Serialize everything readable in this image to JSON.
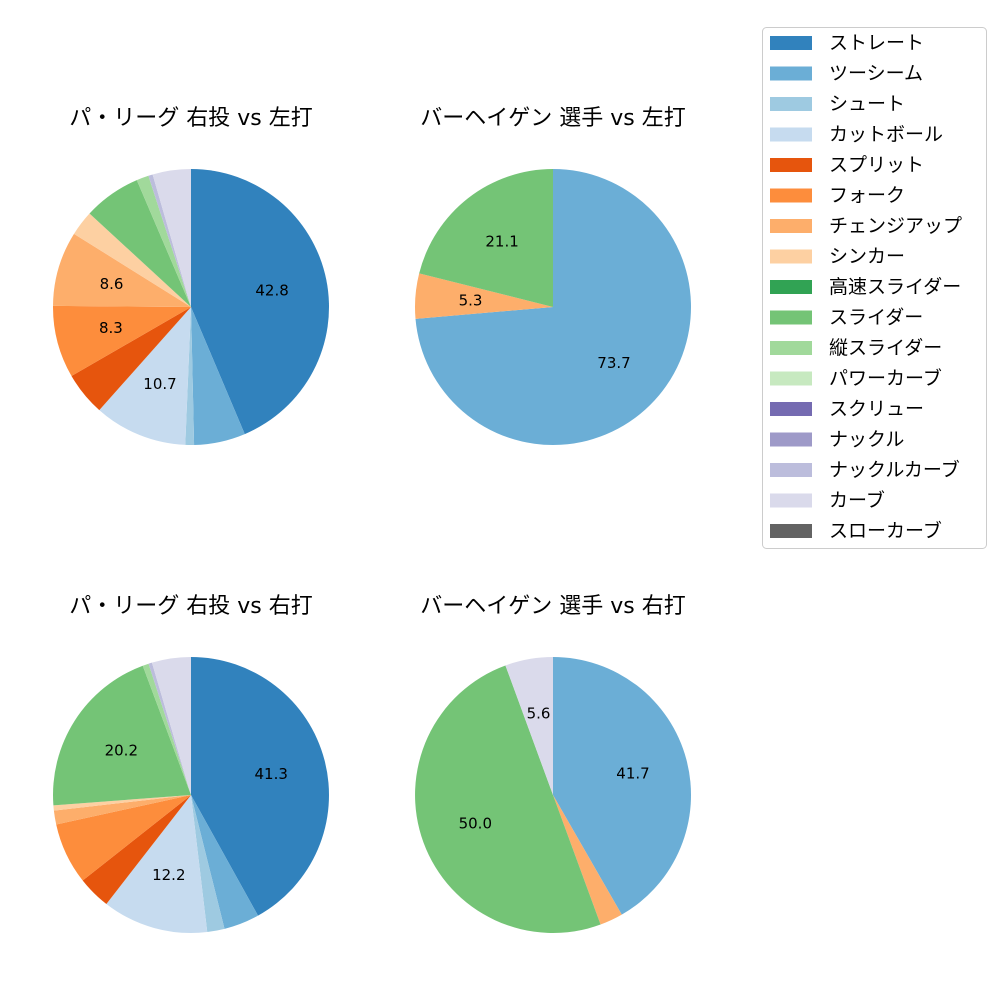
{
  "legend": {
    "items": [
      {
        "label": "ストレート",
        "color": "#3182bd"
      },
      {
        "label": "ツーシーム",
        "color": "#6baed6"
      },
      {
        "label": "シュート",
        "color": "#9ecae1"
      },
      {
        "label": "カットボール",
        "color": "#c6dbef"
      },
      {
        "label": "スプリット",
        "color": "#e6550d"
      },
      {
        "label": "フォーク",
        "color": "#fd8d3c"
      },
      {
        "label": "チェンジアップ",
        "color": "#fdae6b"
      },
      {
        "label": "シンカー",
        "color": "#fdd0a2"
      },
      {
        "label": "高速スライダー",
        "color": "#31a354"
      },
      {
        "label": "スライダー",
        "color": "#74c476"
      },
      {
        "label": "縦スライダー",
        "color": "#a1d99b"
      },
      {
        "label": "パワーカーブ",
        "color": "#c7e9c0"
      },
      {
        "label": "スクリュー",
        "color": "#756bb1"
      },
      {
        "label": "ナックル",
        "color": "#9e9ac8"
      },
      {
        "label": "ナックルカーブ",
        "color": "#bcbddc"
      },
      {
        "label": "カーブ",
        "color": "#dadaeb"
      },
      {
        "label": "スローカーブ",
        "color": "#636363"
      }
    ]
  },
  "chart_data": [
    {
      "type": "pie",
      "title": "パ・リーグ 右投 vs 左打",
      "slices": [
        {
          "name": "ストレート",
          "value": 42.8,
          "label": "42.8"
        },
        {
          "name": "ツーシーム",
          "value": 5.9
        },
        {
          "name": "シュート",
          "value": 1.0
        },
        {
          "name": "カットボール",
          "value": 10.7,
          "label": "10.7"
        },
        {
          "name": "スプリット",
          "value": 5.0
        },
        {
          "name": "フォーク",
          "value": 8.3,
          "label": "8.3"
        },
        {
          "name": "チェンジアップ",
          "value": 8.6,
          "label": "8.6"
        },
        {
          "name": "シンカー",
          "value": 2.9
        },
        {
          "name": "スライダー",
          "value": 6.6
        },
        {
          "name": "縦スライダー",
          "value": 1.4
        },
        {
          "name": "ナックルカーブ",
          "value": 0.5
        },
        {
          "name": "カーブ",
          "value": 4.4
        }
      ]
    },
    {
      "type": "pie",
      "title": "バーヘイゲン 選手 vs 左打",
      "slices": [
        {
          "name": "ツーシーム",
          "value": 73.7,
          "label": "73.7"
        },
        {
          "name": "チェンジアップ",
          "value": 5.3,
          "label": "5.3"
        },
        {
          "name": "スライダー",
          "value": 21.1,
          "label": "21.1"
        }
      ]
    },
    {
      "type": "pie",
      "title": "パ・リーグ 右投 vs 右打",
      "slices": [
        {
          "name": "ストレート",
          "value": 41.3,
          "label": "41.3"
        },
        {
          "name": "ツーシーム",
          "value": 4.1
        },
        {
          "name": "シュート",
          "value": 2.0
        },
        {
          "name": "カットボール",
          "value": 12.2,
          "label": "12.2"
        },
        {
          "name": "スプリット",
          "value": 3.8
        },
        {
          "name": "フォーク",
          "value": 7.1
        },
        {
          "name": "チェンジアップ",
          "value": 1.6
        },
        {
          "name": "シンカー",
          "value": 0.6
        },
        {
          "name": "スライダー",
          "value": 20.2,
          "label": "20.2"
        },
        {
          "name": "縦スライダー",
          "value": 0.7
        },
        {
          "name": "ナックルカーブ",
          "value": 0.4
        },
        {
          "name": "カーブ",
          "value": 4.5
        }
      ]
    },
    {
      "type": "pie",
      "title": "バーヘイゲン 選手 vs 右打",
      "slices": [
        {
          "name": "ツーシーム",
          "value": 41.7,
          "label": "41.7"
        },
        {
          "name": "チェンジアップ",
          "value": 2.7
        },
        {
          "name": "スライダー",
          "value": 50.0,
          "label": "50.0"
        },
        {
          "name": "カーブ",
          "value": 5.6,
          "label": "5.6"
        }
      ]
    }
  ]
}
